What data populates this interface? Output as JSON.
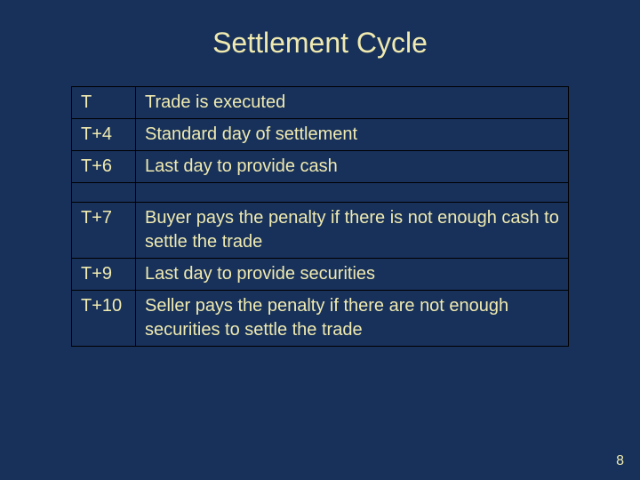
{
  "slide": {
    "title": "Settlement Cycle",
    "background_color": "#17315a",
    "text_color": "#f0eab0",
    "border_color": "#000000",
    "title_fontsize": 32,
    "cell_fontsize": 20,
    "page_number": "8",
    "table": {
      "rows": [
        {
          "key": "T",
          "desc": "Trade is executed"
        },
        {
          "key": "T+4",
          "desc": "Standard day of settlement"
        },
        {
          "key": "T+6",
          "desc": "Last day to provide cash"
        },
        {
          "key": "T+7",
          "desc": "Buyer pays the penalty if there is not enough cash to settle the trade"
        },
        {
          "key": "T+9",
          "desc": "Last day to provide securities"
        },
        {
          "key": "T+10",
          "desc": "Seller pays the penalty if there are not enough securities to settle the trade"
        }
      ],
      "gap_after_index": 2
    }
  }
}
